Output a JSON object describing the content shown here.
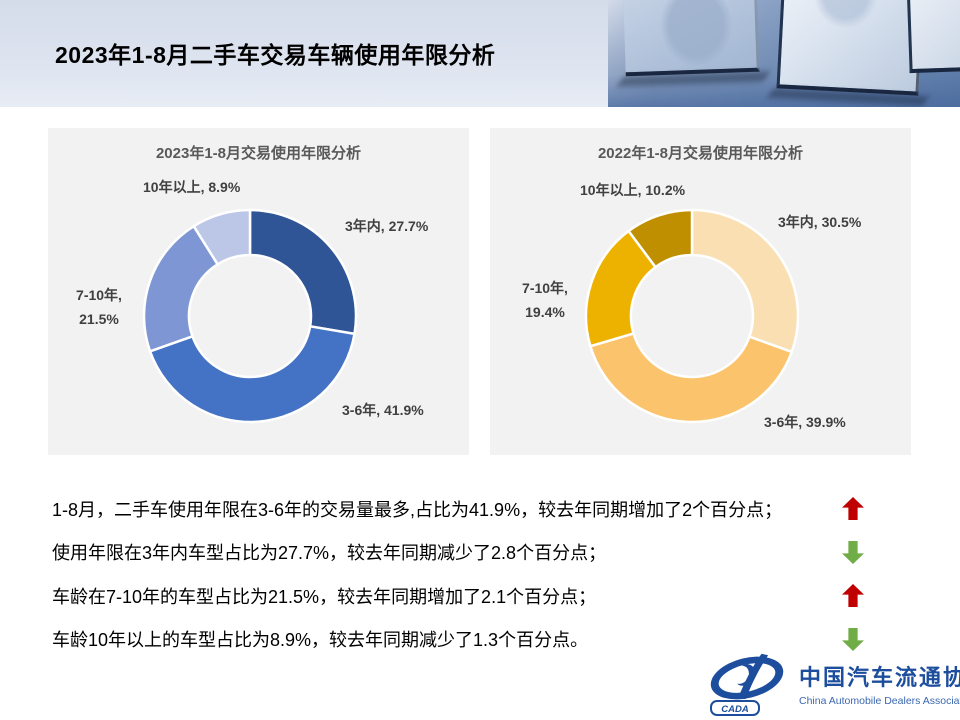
{
  "header": {
    "title": "2023年1-8月二手车交易车辆使用年限分析"
  },
  "charts": [
    {
      "title": "2023年1-8月交易使用年限分析",
      "labels": {
        "top": "10年以上, 8.9%",
        "right": "3年内, 27.7%",
        "left_line1": "7-10年,",
        "left_line2": "21.5%",
        "bottom": "3-6年, 41.9%"
      }
    },
    {
      "title": "2022年1-8月交易使用年限分析",
      "labels": {
        "top": "10年以上, 10.2%",
        "right": "3年内, 30.5%",
        "left_line1": "7-10年,",
        "left_line2": "19.4%",
        "bottom": "3-6年, 39.9%"
      }
    }
  ],
  "chart_data": [
    {
      "type": "pie",
      "subtype": "donut",
      "title": "2023年1-8月交易使用年限分析",
      "categories": [
        "3年内",
        "3-6年",
        "7-10年",
        "10年以上"
      ],
      "values": [
        27.7,
        41.9,
        21.5,
        8.9
      ],
      "unit": "%",
      "colors": [
        "#2f5597",
        "#4472c4",
        "#7e96d4",
        "#bcc7e8"
      ],
      "start_angle_deg": 0,
      "direction": "clockwise",
      "inner_radius_ratio": 0.58
    },
    {
      "type": "pie",
      "subtype": "donut",
      "title": "2022年1-8月交易使用年限分析",
      "categories": [
        "3年内",
        "3-6年",
        "7-10年",
        "10年以上"
      ],
      "values": [
        30.5,
        39.9,
        19.4,
        10.2
      ],
      "unit": "%",
      "colors": [
        "#fadfb2",
        "#fbc46c",
        "#edb200",
        "#bf8f00"
      ],
      "start_angle_deg": 0,
      "direction": "clockwise",
      "inner_radius_ratio": 0.58
    }
  ],
  "insights": [
    {
      "text": "1-8月，二手车使用年限在3-6年的交易量最多,占比为41.9%，较去年同期增加了2个百分点；",
      "arrow": "up"
    },
    {
      "text": "使用年限在3年内车型占比为27.7%，较去年同期减少了2.8个百分点；",
      "arrow": "down"
    },
    {
      "text": "车龄在7-10年的车型占比为21.5%，较去年同期增加了2.1个百分点；",
      "arrow": "up"
    },
    {
      "text": "车龄10年以上的车型占比为8.9%，较去年同期减少了1.3个百分点。",
      "arrow": "down"
    }
  ],
  "logo": {
    "mark_text": "CADA",
    "org_cn": "中国汽车流通协会",
    "org_en": "China Automobile Dealers Association"
  },
  "colors": {
    "arrow_up": "#c00000",
    "arrow_down": "#70ad47",
    "card_background": "#f2f2f2",
    "logo_blue": "#1d4e9e"
  }
}
